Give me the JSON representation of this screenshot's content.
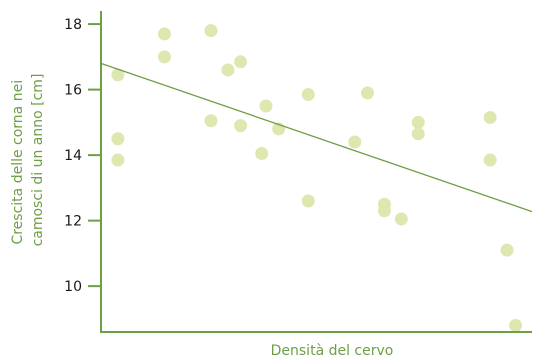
{
  "chart_data": {
    "type": "scatter",
    "title": "",
    "xlabel": "Densità del cervo",
    "ylabel_lines": [
      "Crescita delle corna nei",
      "camosci di un anno [cm]"
    ],
    "ylim": [
      8.6,
      18.4
    ],
    "xlim": [
      0,
      100
    ],
    "yticks": [
      10,
      12,
      14,
      16,
      18
    ],
    "ytick_labels": [
      "10",
      "12",
      "14",
      "16",
      "18"
    ],
    "x_tick_labels": false,
    "grid": false,
    "points": [
      {
        "x": 4,
        "y": 16.45
      },
      {
        "x": 4,
        "y": 14.5
      },
      {
        "x": 4,
        "y": 13.85
      },
      {
        "x": 15,
        "y": 17.7
      },
      {
        "x": 15,
        "y": 17.0
      },
      {
        "x": 26,
        "y": 17.8
      },
      {
        "x": 26,
        "y": 15.05
      },
      {
        "x": 30,
        "y": 16.6
      },
      {
        "x": 33,
        "y": 16.85
      },
      {
        "x": 33,
        "y": 14.9
      },
      {
        "x": 38,
        "y": 14.05
      },
      {
        "x": 39,
        "y": 15.5
      },
      {
        "x": 42,
        "y": 14.8
      },
      {
        "x": 49,
        "y": 15.85
      },
      {
        "x": 49,
        "y": 12.6
      },
      {
        "x": 60,
        "y": 14.4
      },
      {
        "x": 63,
        "y": 15.9
      },
      {
        "x": 67,
        "y": 12.5
      },
      {
        "x": 67,
        "y": 12.3
      },
      {
        "x": 71,
        "y": 12.05
      },
      {
        "x": 75,
        "y": 15.0
      },
      {
        "x": 75,
        "y": 14.65
      },
      {
        "x": 92,
        "y": 15.15
      },
      {
        "x": 92,
        "y": 13.85
      },
      {
        "x": 96,
        "y": 11.1
      },
      {
        "x": 98,
        "y": 8.8
      }
    ],
    "trendline": {
      "x": [
        0,
        100
      ],
      "y": [
        16.8,
        12.3
      ]
    },
    "colors": {
      "points": "#dde8b0",
      "trendline": "#6e9e45",
      "axes": "#6e9e45",
      "axis_title": "#6e9e45",
      "tick_label": "#1a1a1a"
    }
  }
}
